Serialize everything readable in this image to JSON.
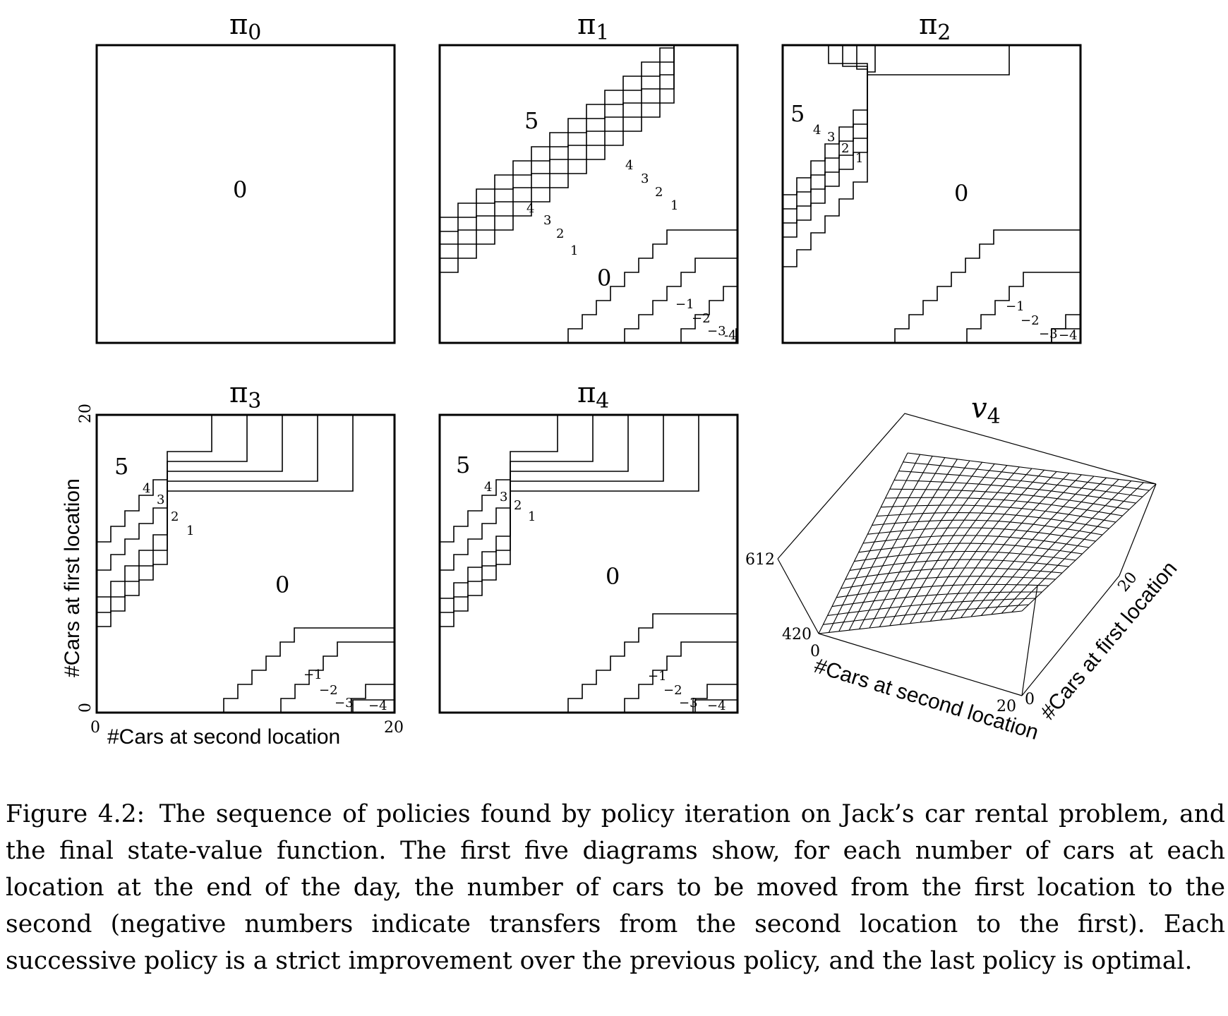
{
  "panels": [
    {
      "id": "pi0",
      "title": "π",
      "title_sub": "0",
      "regions": [
        "0"
      ]
    },
    {
      "id": "pi1",
      "title": "π",
      "title_sub": "1",
      "regions": [
        "5",
        "0"
      ],
      "contour_labels": [
        "4",
        "3",
        "2",
        "1",
        "4",
        "3",
        "2",
        "1",
        "−1",
        "−2",
        "−3",
        "-4"
      ]
    },
    {
      "id": "pi2",
      "title": "π",
      "title_sub": "2",
      "regions": [
        "5",
        "0"
      ],
      "contour_labels": [
        "4",
        "3",
        "2",
        "1",
        "−1",
        "−2",
        "−3",
        "−4"
      ]
    },
    {
      "id": "pi3",
      "title": "π",
      "title_sub": "3",
      "regions": [
        "5",
        "0"
      ],
      "contour_labels": [
        "4",
        "3",
        "2",
        "1",
        "−1",
        "−2",
        "−3",
        "−4"
      ]
    },
    {
      "id": "pi4",
      "title": "π",
      "title_sub": "4",
      "regions": [
        "5",
        "0"
      ],
      "contour_labels": [
        "4",
        "3",
        "2",
        "1",
        "−1",
        "−2",
        "−3",
        "−4"
      ]
    }
  ],
  "axes_pi3": {
    "y_label": "#Cars at first location",
    "x_label": "#Cars at second location",
    "y_ticks": [
      "0",
      "20"
    ],
    "x_ticks": [
      "0",
      "20"
    ]
  },
  "surface_v4": {
    "title": "v",
    "title_sub": "4",
    "z_ticks": [
      "612",
      "420"
    ],
    "x_label": "#Cars at second location",
    "x_ticks": [
      "0",
      "20"
    ],
    "y_label": "#Cars at first location",
    "y_ticks": [
      "0",
      "20"
    ]
  },
  "caption": {
    "label": "Figure 4.2:",
    "text": "The sequence of policies found by policy iteration on Jack’s car rental problem, and the final state-value function. The first five diagrams show, for each number of cars at each location at the end of the day, the number of cars to be moved from the first location to the second (negative numbers indicate transfers from the second location to the first). Each successive policy is a strict improvement over the previous policy, and the last policy is optimal."
  }
}
